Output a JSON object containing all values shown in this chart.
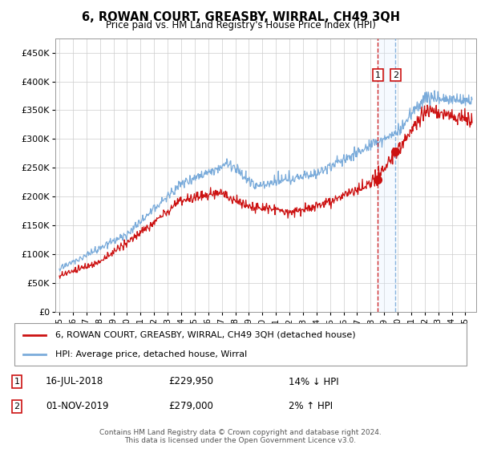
{
  "title": "6, ROWAN COURT, GREASBY, WIRRAL, CH49 3QH",
  "subtitle": "Price paid vs. HM Land Registry's House Price Index (HPI)",
  "hpi_label": "HPI: Average price, detached house, Wirral",
  "property_label": "6, ROWAN COURT, GREASBY, WIRRAL, CH49 3QH (detached house)",
  "annotation1": {
    "num": "1",
    "date": "16-JUL-2018",
    "price": "£229,950",
    "pct": "14% ↓ HPI"
  },
  "annotation2": {
    "num": "2",
    "date": "01-NOV-2019",
    "price": "£279,000",
    "pct": "2% ↑ HPI"
  },
  "footer": "Contains HM Land Registry data © Crown copyright and database right 2024.\nThis data is licensed under the Open Government Licence v3.0.",
  "hpi_color": "#7aabda",
  "property_color": "#cc1111",
  "vline1_color": "#cc1111",
  "vline2_color": "#7aabda",
  "shade_color": "#ddeeff",
  "ylim": [
    0,
    475000
  ],
  "yticks": [
    0,
    50000,
    100000,
    150000,
    200000,
    250000,
    300000,
    350000,
    400000,
    450000
  ],
  "ytick_labels": [
    "£0",
    "£50K",
    "£100K",
    "£150K",
    "£200K",
    "£250K",
    "£300K",
    "£350K",
    "£400K",
    "£450K"
  ],
  "sale1_x": 2018.54,
  "sale1_y": 229950,
  "sale2_x": 2019.83,
  "sale2_y": 279000,
  "xlim_left": 1994.7,
  "xlim_right": 2025.8
}
